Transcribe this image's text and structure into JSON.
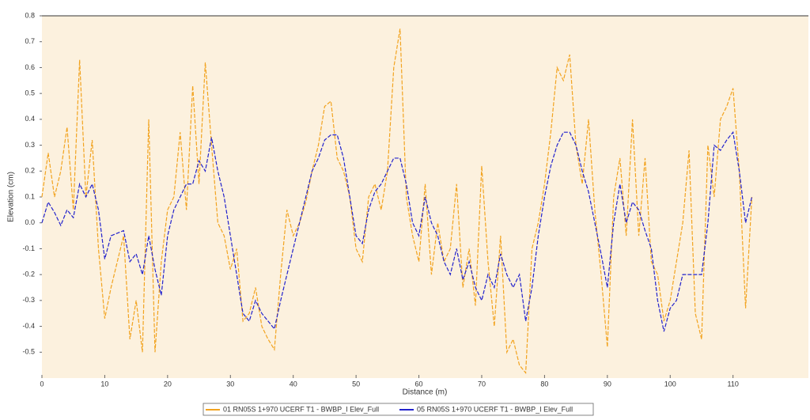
{
  "chart_data": {
    "type": "line",
    "x_label": "Distance (m)",
    "y_label": "Elevation (cm)",
    "x": [
      0,
      1,
      2,
      3,
      4,
      5,
      6,
      7,
      8,
      9,
      10,
      11,
      12,
      13,
      14,
      15,
      16,
      17,
      18,
      19,
      20,
      21,
      22,
      23,
      24,
      25,
      26,
      27,
      28,
      29,
      30,
      31,
      32,
      33,
      34,
      35,
      36,
      37,
      38,
      39,
      40,
      41,
      42,
      43,
      44,
      45,
      46,
      47,
      48,
      49,
      50,
      51,
      52,
      53,
      54,
      55,
      56,
      57,
      58,
      59,
      60,
      61,
      62,
      63,
      64,
      65,
      66,
      67,
      68,
      69,
      70,
      71,
      72,
      73,
      74,
      75,
      76,
      77,
      78,
      79,
      80,
      81,
      82,
      83,
      84,
      85,
      86,
      87,
      88,
      89,
      90,
      91,
      92,
      93,
      94,
      95,
      96,
      97,
      98,
      99,
      100,
      101,
      102,
      103,
      104,
      105,
      106,
      107,
      108,
      109,
      110,
      111,
      112,
      113
    ],
    "series": [
      {
        "name": "01 RN05S 1+970 UCERF T1 - BWBP_I Elev_Full",
        "color": "#f2a31f",
        "values": [
          0.1,
          0.27,
          0.1,
          0.2,
          0.37,
          0.05,
          0.63,
          0.1,
          0.32,
          -0.1,
          -0.37,
          -0.25,
          -0.15,
          -0.05,
          -0.45,
          -0.3,
          -0.5,
          0.4,
          -0.5,
          -0.15,
          0.05,
          0.1,
          0.35,
          0.05,
          0.53,
          0.15,
          0.62,
          0.3,
          0.0,
          -0.05,
          -0.18,
          -0.1,
          -0.38,
          -0.35,
          -0.25,
          -0.4,
          -0.45,
          -0.49,
          -0.2,
          0.05,
          -0.05,
          0.0,
          0.08,
          0.2,
          0.3,
          0.45,
          0.47,
          0.25,
          0.2,
          0.1,
          -0.1,
          -0.15,
          0.1,
          0.15,
          0.05,
          0.2,
          0.6,
          0.75,
          0.1,
          -0.05,
          -0.15,
          0.15,
          -0.2,
          0.0,
          -0.15,
          -0.1,
          0.15,
          -0.25,
          -0.1,
          -0.32,
          0.22,
          -0.15,
          -0.4,
          -0.05,
          -0.5,
          -0.45,
          -0.55,
          -0.58,
          -0.1,
          0.0,
          0.15,
          0.35,
          0.6,
          0.55,
          0.65,
          0.3,
          0.15,
          0.4,
          0.05,
          -0.2,
          -0.48,
          0.1,
          0.25,
          -0.05,
          0.4,
          -0.05,
          0.25,
          -0.15,
          -0.2,
          -0.38,
          -0.3,
          -0.15,
          0.0,
          0.28,
          -0.35,
          -0.45,
          0.3,
          0.1,
          0.4,
          0.45,
          0.52,
          0.2,
          -0.33,
          0.1
        ]
      },
      {
        "name": "05 RN05S 1+970 UCERF T1 - BWBP_I Elev_Full",
        "color": "#2222cc",
        "values": [
          0.0,
          0.08,
          0.04,
          -0.01,
          0.05,
          0.02,
          0.15,
          0.1,
          0.15,
          0.05,
          -0.14,
          -0.05,
          -0.04,
          -0.03,
          -0.15,
          -0.12,
          -0.2,
          -0.05,
          -0.18,
          -0.28,
          -0.05,
          0.05,
          0.1,
          0.15,
          0.15,
          0.24,
          0.2,
          0.33,
          0.2,
          0.1,
          -0.05,
          -0.2,
          -0.35,
          -0.38,
          -0.3,
          -0.35,
          -0.38,
          -0.41,
          -0.3,
          -0.2,
          -0.1,
          0.0,
          0.1,
          0.2,
          0.25,
          0.32,
          0.34,
          0.34,
          0.25,
          0.1,
          -0.05,
          -0.08,
          0.05,
          0.12,
          0.15,
          0.2,
          0.25,
          0.25,
          0.15,
          0.0,
          -0.05,
          0.1,
          0.0,
          -0.05,
          -0.15,
          -0.2,
          -0.1,
          -0.22,
          -0.15,
          -0.25,
          -0.3,
          -0.2,
          -0.25,
          -0.12,
          -0.2,
          -0.25,
          -0.2,
          -0.38,
          -0.25,
          -0.05,
          0.1,
          0.22,
          0.3,
          0.35,
          0.35,
          0.3,
          0.2,
          0.12,
          0.0,
          -0.12,
          -0.25,
          0.0,
          0.15,
          0.0,
          0.08,
          0.05,
          -0.03,
          -0.1,
          -0.3,
          -0.42,
          -0.33,
          -0.3,
          -0.2,
          -0.2,
          -0.2,
          -0.2,
          0.0,
          0.3,
          0.28,
          0.32,
          0.35,
          0.2,
          0.0,
          0.1
        ]
      }
    ],
    "xlim": [
      0,
      122
    ],
    "xticks": [
      0,
      10,
      20,
      30,
      40,
      50,
      60,
      70,
      80,
      90,
      100,
      110
    ],
    "ylim": [
      -0.6,
      0.8
    ],
    "yticks": [
      -0.5,
      -0.4,
      -0.3,
      -0.2,
      -0.1,
      {
        "value": 0,
        "label": "0.0"
      },
      0.1,
      0.2,
      0.3,
      0.4,
      0.5,
      0.6,
      0.7,
      0.8
    ],
    "dashed": true,
    "legend": "bottom"
  }
}
